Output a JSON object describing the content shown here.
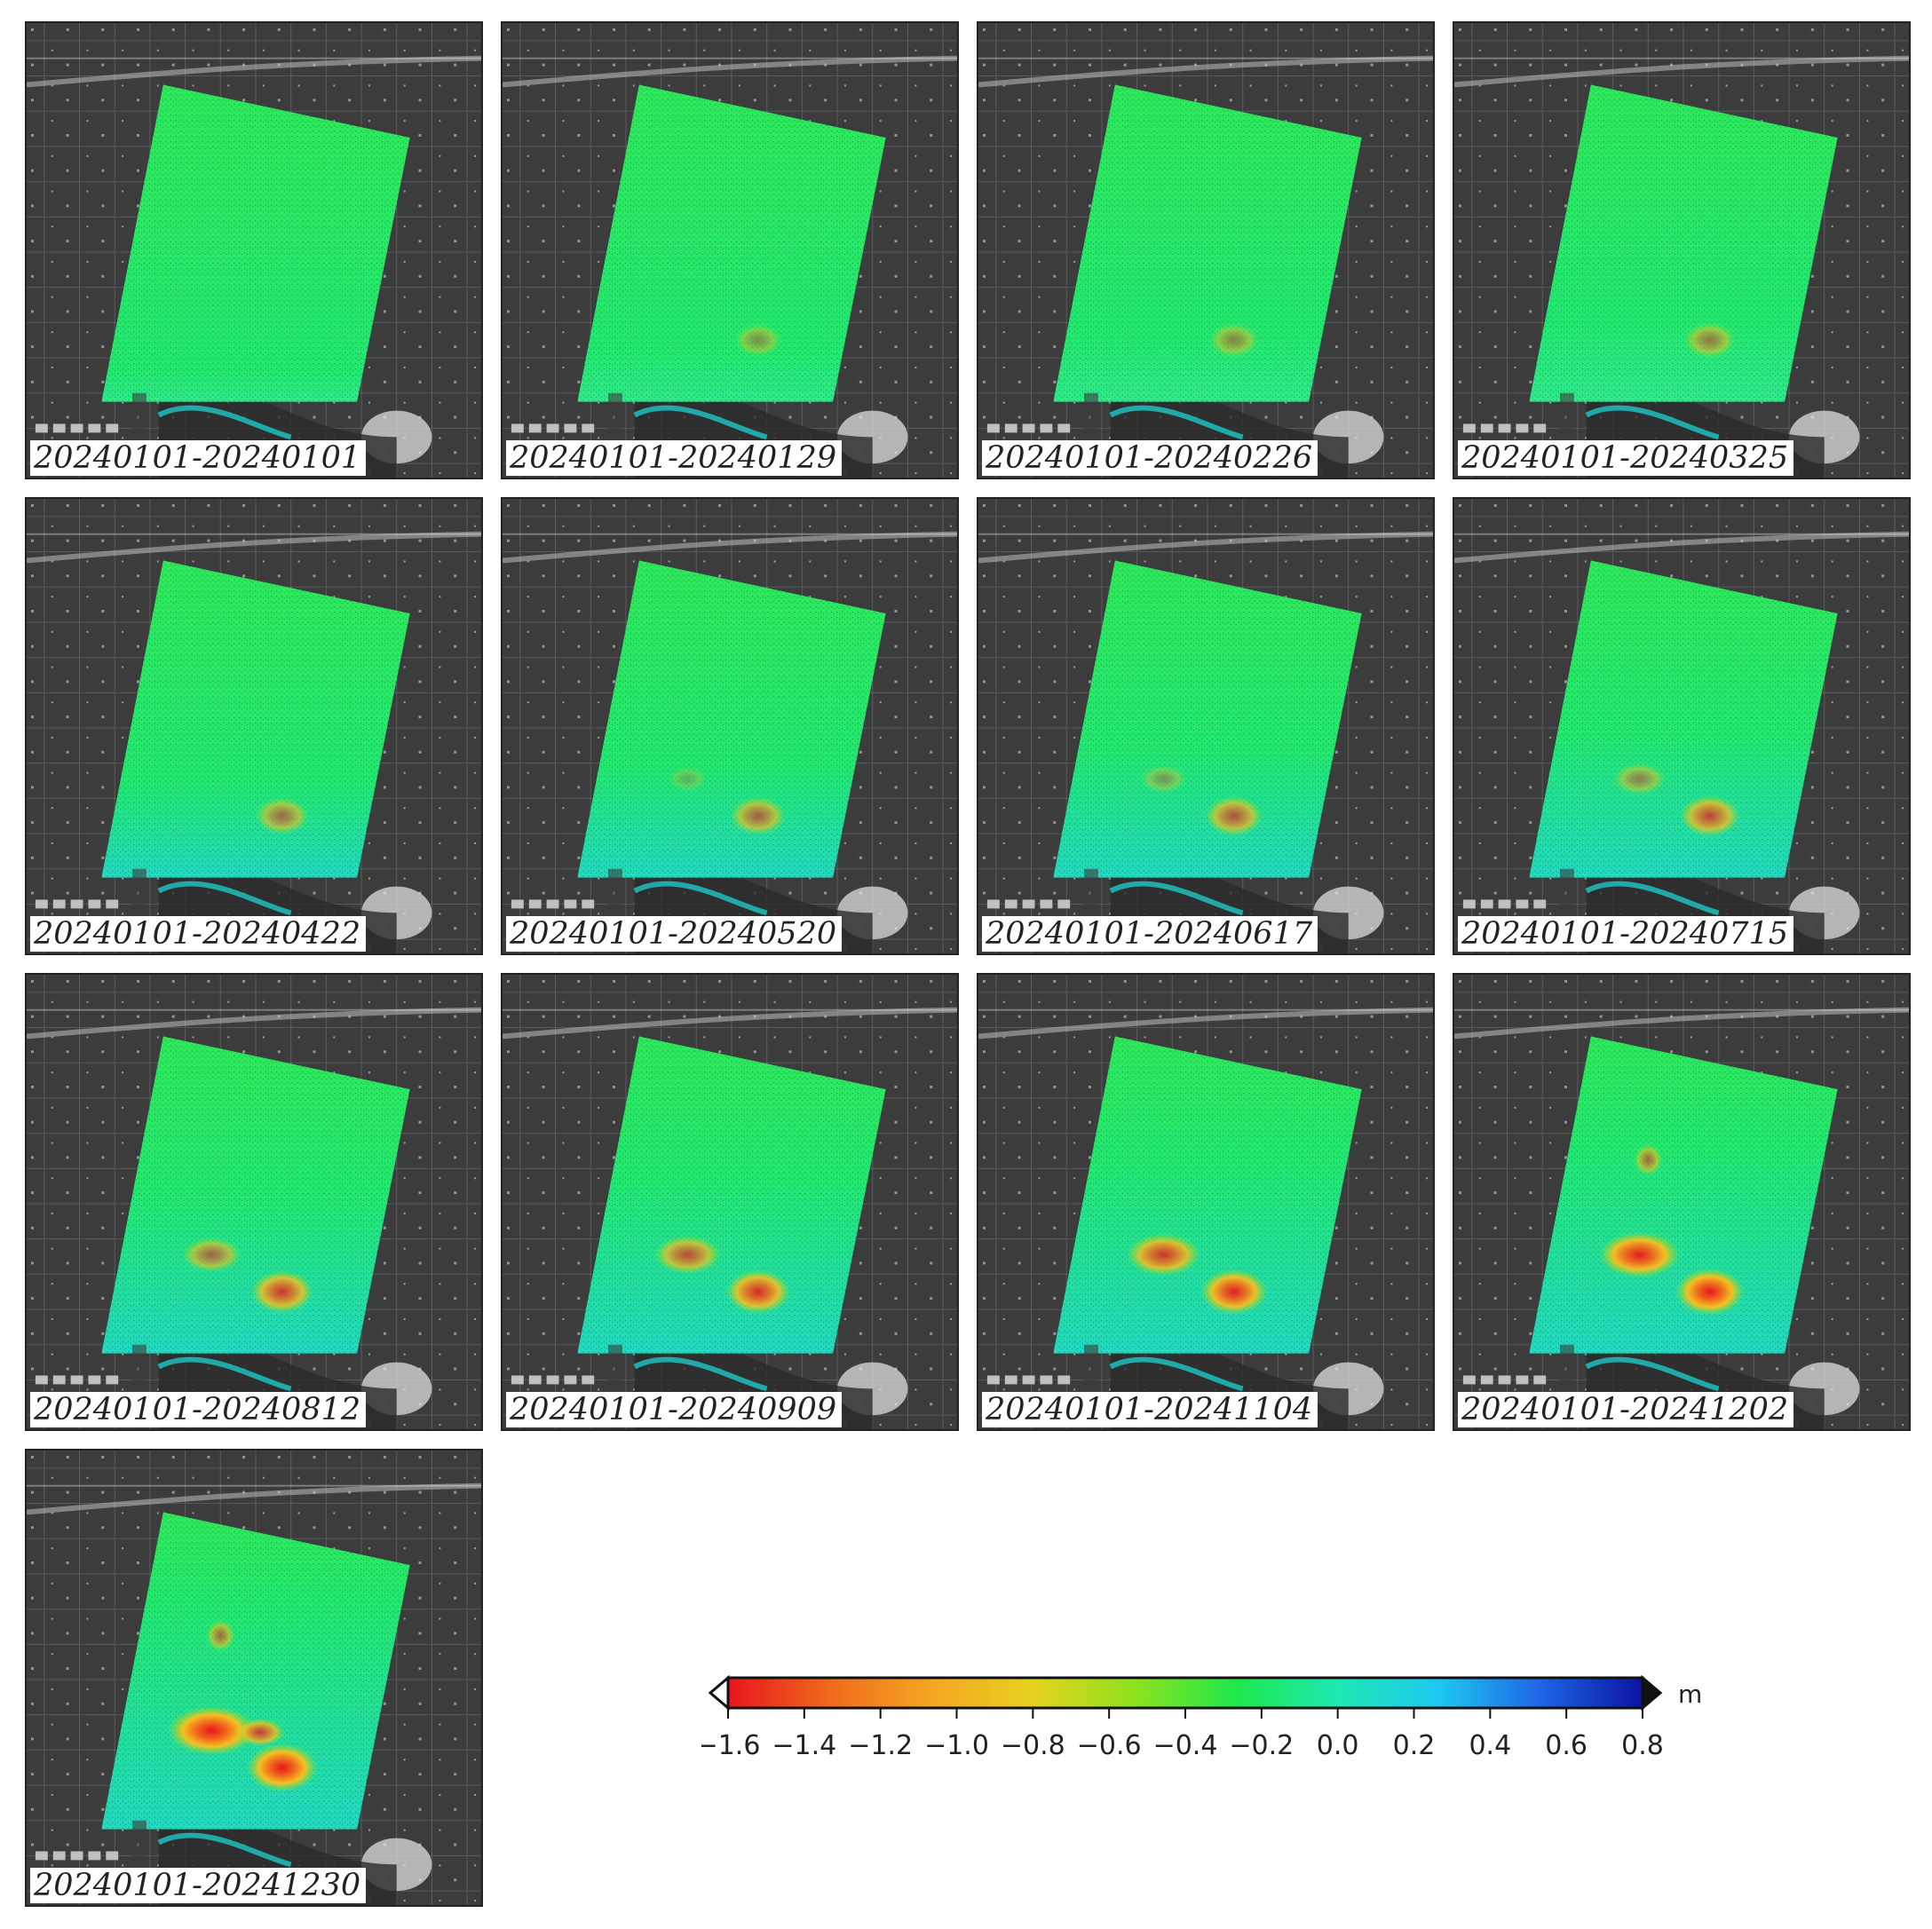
{
  "panels": [
    {
      "label": "20240101-20240101",
      "stage": 0
    },
    {
      "label": "20240101-20240129",
      "stage": 1
    },
    {
      "label": "20240101-20240226",
      "stage": 2
    },
    {
      "label": "20240101-20240325",
      "stage": 3
    },
    {
      "label": "20240101-20240422",
      "stage": 4
    },
    {
      "label": "20240101-20240520",
      "stage": 5
    },
    {
      "label": "20240101-20240617",
      "stage": 6
    },
    {
      "label": "20240101-20240715",
      "stage": 7
    },
    {
      "label": "20240101-20240812",
      "stage": 8
    },
    {
      "label": "20240101-20240909",
      "stage": 9
    },
    {
      "label": "20240101-20241104",
      "stage": 10
    },
    {
      "label": "20240101-20241202",
      "stage": 11
    },
    {
      "label": "20240101-20241230",
      "stage": 12
    }
  ],
  "colorbar": {
    "unit": "m",
    "min": -1.6,
    "max": 0.8,
    "tick_labels": [
      "−1.6",
      "−1.4",
      "−1.2",
      "−1.0",
      "−0.8",
      "−0.6",
      "−0.4",
      "−0.2",
      "0.0",
      "0.2",
      "0.4",
      "0.6",
      "0.8"
    ],
    "colors": [
      "#e8141e",
      "#f06a1c",
      "#f5a623",
      "#e6d21e",
      "#8ee21e",
      "#1ee84a",
      "#1ee8b4",
      "#1ec8f0",
      "#1e64e6",
      "#0a14a0"
    ]
  }
}
